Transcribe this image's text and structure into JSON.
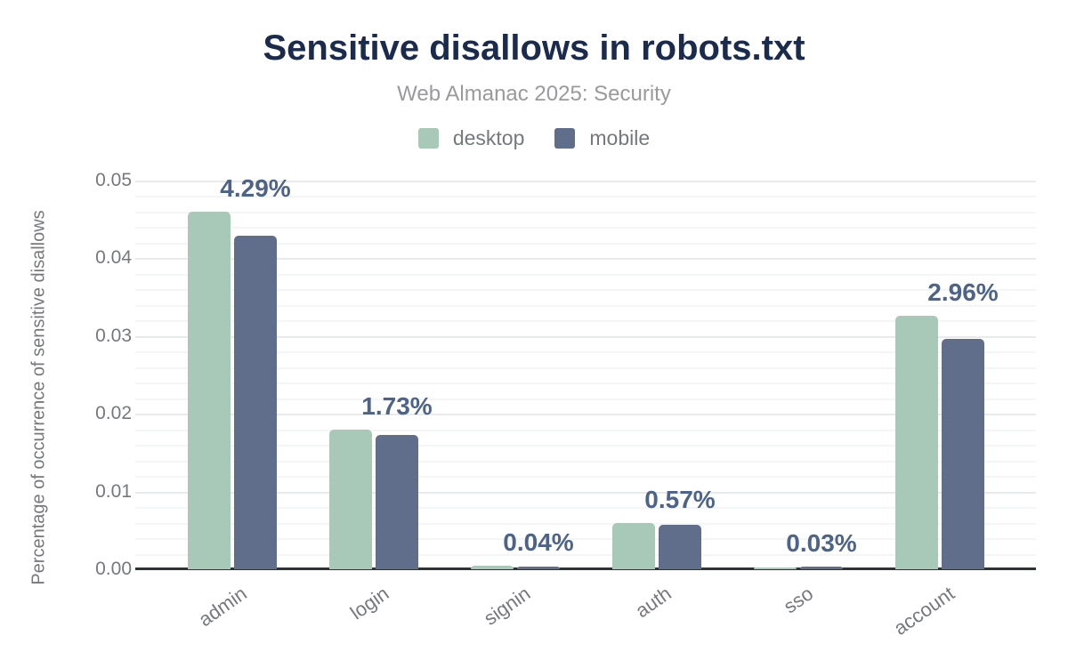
{
  "header": {
    "title": "Sensitive disallows in robots.txt",
    "subtitle": "Web Almanac 2025: Security"
  },
  "legend": {
    "items": [
      {
        "label": "desktop",
        "color": "#a8c9b8"
      },
      {
        "label": "mobile",
        "color": "#606e8c"
      }
    ]
  },
  "chart_data": {
    "type": "bar",
    "title": "Sensitive disallows in robots.txt",
    "subtitle": "Web Almanac 2025: Security",
    "xlabel": "",
    "ylabel": "Percentage of occurrence of sensitive disallows",
    "categories": [
      "admin",
      "login",
      "signin",
      "auth",
      "sso",
      "account"
    ],
    "series": [
      {
        "name": "desktop",
        "color": "#a8c9b8",
        "values": [
          0.046,
          0.018,
          0.0005,
          0.0059,
          0.0002,
          0.0326
        ]
      },
      {
        "name": "mobile",
        "color": "#606e8c",
        "values": [
          0.0429,
          0.0173,
          0.0004,
          0.0057,
          0.0003,
          0.0296
        ]
      }
    ],
    "data_labels": {
      "applies_to_series": "mobile",
      "values": [
        "4.29%",
        "1.73%",
        "0.04%",
        "0.57%",
        "0.03%",
        "2.96%"
      ]
    },
    "ylim": [
      0,
      0.05
    ],
    "y_ticks": [
      {
        "value": 0.0,
        "label": "0.00"
      },
      {
        "value": 0.01,
        "label": "0.01"
      },
      {
        "value": 0.02,
        "label": "0.02"
      },
      {
        "value": 0.03,
        "label": "0.03"
      },
      {
        "value": 0.04,
        "label": "0.04"
      },
      {
        "value": 0.05,
        "label": "0.05"
      }
    ],
    "minor_gridline_step": 0.002,
    "grid": "on",
    "legend_position": "top"
  },
  "colors": {
    "title_text": "#1a2b4d",
    "subtitle_text": "#9a9a9e",
    "axis_text": "#75787c",
    "data_label_text": "#4d6388",
    "desktop_bar": "#a8c9b8",
    "mobile_bar": "#606e8c",
    "gridline_major": "#e8eaec",
    "gridline_minor": "#f4f5f6",
    "axis_line": "#303336",
    "background": "#ffffff"
  }
}
